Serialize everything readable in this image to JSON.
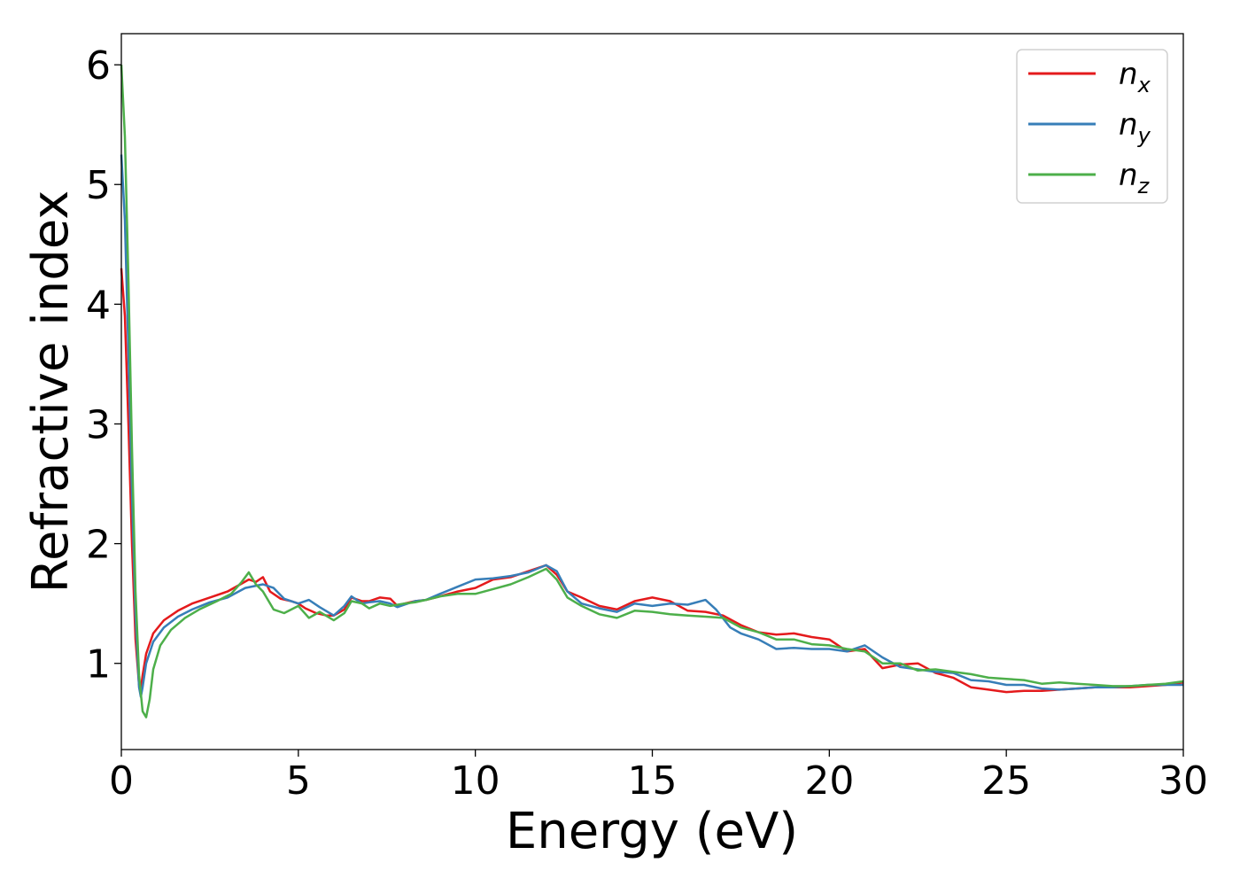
{
  "chart_data": {
    "type": "line",
    "xlabel": "Energy (eV)",
    "ylabel": "Refractive index",
    "xlim": [
      0,
      30
    ],
    "ylim": [
      0.28,
      6.26
    ],
    "x_ticks": [
      0,
      5,
      10,
      15,
      20,
      25,
      30
    ],
    "y_ticks": [
      1,
      2,
      3,
      4,
      5,
      6
    ],
    "grid": false,
    "legend_position": "top-right",
    "series": [
      {
        "name": "n",
        "subscript": "x",
        "color": "#e41a1c",
        "points": [
          [
            0,
            4.3
          ],
          [
            0.1,
            3.9
          ],
          [
            0.2,
            3.0
          ],
          [
            0.3,
            2.0
          ],
          [
            0.4,
            1.2
          ],
          [
            0.5,
            0.82
          ],
          [
            0.55,
            0.78
          ],
          [
            0.6,
            0.9
          ],
          [
            0.7,
            1.08
          ],
          [
            0.9,
            1.25
          ],
          [
            1.2,
            1.36
          ],
          [
            1.6,
            1.44
          ],
          [
            2.0,
            1.5
          ],
          [
            2.5,
            1.55
          ],
          [
            3.0,
            1.6
          ],
          [
            3.3,
            1.65
          ],
          [
            3.6,
            1.7
          ],
          [
            3.8,
            1.68
          ],
          [
            4.0,
            1.72
          ],
          [
            4.2,
            1.6
          ],
          [
            4.5,
            1.54
          ],
          [
            4.8,
            1.52
          ],
          [
            5.0,
            1.5
          ],
          [
            5.2,
            1.46
          ],
          [
            5.5,
            1.42
          ],
          [
            5.8,
            1.4
          ],
          [
            6.0,
            1.4
          ],
          [
            6.3,
            1.45
          ],
          [
            6.5,
            1.55
          ],
          [
            6.8,
            1.52
          ],
          [
            7.0,
            1.52
          ],
          [
            7.3,
            1.55
          ],
          [
            7.6,
            1.54
          ],
          [
            7.8,
            1.48
          ],
          [
            8.0,
            1.5
          ],
          [
            8.3,
            1.52
          ],
          [
            8.6,
            1.53
          ],
          [
            9.0,
            1.56
          ],
          [
            9.5,
            1.6
          ],
          [
            10.0,
            1.63
          ],
          [
            10.5,
            1.7
          ],
          [
            11.0,
            1.72
          ],
          [
            11.5,
            1.77
          ],
          [
            12.0,
            1.82
          ],
          [
            12.3,
            1.74
          ],
          [
            12.6,
            1.6
          ],
          [
            13.0,
            1.55
          ],
          [
            13.5,
            1.48
          ],
          [
            14.0,
            1.45
          ],
          [
            14.5,
            1.52
          ],
          [
            15.0,
            1.55
          ],
          [
            15.5,
            1.52
          ],
          [
            16.0,
            1.44
          ],
          [
            16.5,
            1.43
          ],
          [
            17.0,
            1.4
          ],
          [
            17.5,
            1.32
          ],
          [
            18.0,
            1.26
          ],
          [
            18.5,
            1.24
          ],
          [
            19.0,
            1.25
          ],
          [
            19.5,
            1.22
          ],
          [
            20.0,
            1.2
          ],
          [
            20.5,
            1.1
          ],
          [
            21.0,
            1.12
          ],
          [
            21.5,
            0.96
          ],
          [
            22.0,
            0.99
          ],
          [
            22.5,
            1.0
          ],
          [
            23.0,
            0.92
          ],
          [
            23.5,
            0.88
          ],
          [
            24.0,
            0.8
          ],
          [
            24.5,
            0.78
          ],
          [
            25.0,
            0.76
          ],
          [
            25.5,
            0.77
          ],
          [
            26.0,
            0.77
          ],
          [
            26.5,
            0.78
          ],
          [
            27.0,
            0.79
          ],
          [
            27.5,
            0.8
          ],
          [
            28.0,
            0.8
          ],
          [
            28.5,
            0.8
          ],
          [
            29.0,
            0.81
          ],
          [
            29.5,
            0.82
          ],
          [
            30.0,
            0.84
          ]
        ]
      },
      {
        "name": "n",
        "subscript": "y",
        "color": "#377eb8",
        "points": [
          [
            0,
            5.25
          ],
          [
            0.1,
            4.7
          ],
          [
            0.2,
            3.6
          ],
          [
            0.3,
            2.4
          ],
          [
            0.4,
            1.4
          ],
          [
            0.5,
            0.8
          ],
          [
            0.55,
            0.72
          ],
          [
            0.6,
            0.8
          ],
          [
            0.7,
            1.0
          ],
          [
            0.9,
            1.18
          ],
          [
            1.2,
            1.3
          ],
          [
            1.6,
            1.39
          ],
          [
            2.0,
            1.45
          ],
          [
            2.5,
            1.51
          ],
          [
            3.0,
            1.55
          ],
          [
            3.5,
            1.63
          ],
          [
            4.0,
            1.66
          ],
          [
            4.3,
            1.63
          ],
          [
            4.6,
            1.54
          ],
          [
            5.0,
            1.5
          ],
          [
            5.3,
            1.53
          ],
          [
            5.6,
            1.47
          ],
          [
            6.0,
            1.4
          ],
          [
            6.3,
            1.48
          ],
          [
            6.5,
            1.56
          ],
          [
            6.8,
            1.5
          ],
          [
            7.0,
            1.51
          ],
          [
            7.3,
            1.52
          ],
          [
            7.6,
            1.5
          ],
          [
            7.8,
            1.47
          ],
          [
            8.0,
            1.49
          ],
          [
            8.3,
            1.52
          ],
          [
            8.6,
            1.53
          ],
          [
            9.0,
            1.58
          ],
          [
            9.5,
            1.64
          ],
          [
            10.0,
            1.7
          ],
          [
            10.5,
            1.71
          ],
          [
            11.0,
            1.73
          ],
          [
            11.5,
            1.76
          ],
          [
            12.0,
            1.82
          ],
          [
            12.3,
            1.77
          ],
          [
            12.6,
            1.6
          ],
          [
            13.0,
            1.5
          ],
          [
            13.5,
            1.46
          ],
          [
            14.0,
            1.43
          ],
          [
            14.5,
            1.5
          ],
          [
            15.0,
            1.48
          ],
          [
            15.5,
            1.5
          ],
          [
            16.0,
            1.49
          ],
          [
            16.5,
            1.53
          ],
          [
            16.8,
            1.45
          ],
          [
            17.2,
            1.3
          ],
          [
            17.5,
            1.25
          ],
          [
            18.0,
            1.2
          ],
          [
            18.5,
            1.12
          ],
          [
            19.0,
            1.13
          ],
          [
            19.5,
            1.12
          ],
          [
            20.0,
            1.12
          ],
          [
            20.5,
            1.1
          ],
          [
            21.0,
            1.15
          ],
          [
            21.5,
            1.05
          ],
          [
            22.0,
            0.97
          ],
          [
            22.5,
            0.95
          ],
          [
            23.0,
            0.93
          ],
          [
            23.5,
            0.92
          ],
          [
            24.0,
            0.86
          ],
          [
            24.5,
            0.85
          ],
          [
            25.0,
            0.82
          ],
          [
            25.5,
            0.82
          ],
          [
            26.0,
            0.79
          ],
          [
            26.5,
            0.78
          ],
          [
            27.0,
            0.79
          ],
          [
            27.5,
            0.8
          ],
          [
            28.0,
            0.8
          ],
          [
            28.5,
            0.81
          ],
          [
            29.0,
            0.82
          ],
          [
            29.5,
            0.82
          ],
          [
            30.0,
            0.82
          ]
        ]
      },
      {
        "name": "n",
        "subscript": "z",
        "color": "#4daf4a",
        "points": [
          [
            0,
            6.0
          ],
          [
            0.1,
            5.4
          ],
          [
            0.2,
            4.2
          ],
          [
            0.3,
            2.8
          ],
          [
            0.4,
            1.6
          ],
          [
            0.5,
            0.9
          ],
          [
            0.6,
            0.6
          ],
          [
            0.7,
            0.55
          ],
          [
            0.8,
            0.7
          ],
          [
            0.9,
            0.95
          ],
          [
            1.1,
            1.15
          ],
          [
            1.4,
            1.28
          ],
          [
            1.8,
            1.38
          ],
          [
            2.2,
            1.45
          ],
          [
            2.7,
            1.52
          ],
          [
            3.1,
            1.58
          ],
          [
            3.4,
            1.68
          ],
          [
            3.6,
            1.76
          ],
          [
            3.8,
            1.66
          ],
          [
            4.0,
            1.6
          ],
          [
            4.3,
            1.45
          ],
          [
            4.6,
            1.42
          ],
          [
            5.0,
            1.48
          ],
          [
            5.3,
            1.38
          ],
          [
            5.6,
            1.43
          ],
          [
            6.0,
            1.36
          ],
          [
            6.3,
            1.42
          ],
          [
            6.5,
            1.52
          ],
          [
            6.8,
            1.5
          ],
          [
            7.0,
            1.46
          ],
          [
            7.3,
            1.5
          ],
          [
            7.6,
            1.48
          ],
          [
            8.0,
            1.5
          ],
          [
            8.3,
            1.51
          ],
          [
            8.6,
            1.53
          ],
          [
            9.0,
            1.56
          ],
          [
            9.5,
            1.58
          ],
          [
            10.0,
            1.58
          ],
          [
            10.5,
            1.62
          ],
          [
            11.0,
            1.66
          ],
          [
            11.5,
            1.72
          ],
          [
            12.0,
            1.79
          ],
          [
            12.3,
            1.7
          ],
          [
            12.6,
            1.55
          ],
          [
            13.0,
            1.48
          ],
          [
            13.5,
            1.41
          ],
          [
            14.0,
            1.38
          ],
          [
            14.5,
            1.44
          ],
          [
            15.0,
            1.43
          ],
          [
            15.5,
            1.41
          ],
          [
            16.0,
            1.4
          ],
          [
            16.5,
            1.39
          ],
          [
            17.0,
            1.38
          ],
          [
            17.5,
            1.3
          ],
          [
            18.0,
            1.26
          ],
          [
            18.5,
            1.2
          ],
          [
            19.0,
            1.2
          ],
          [
            19.5,
            1.16
          ],
          [
            20.0,
            1.15
          ],
          [
            20.5,
            1.12
          ],
          [
            21.0,
            1.1
          ],
          [
            21.5,
            1.0
          ],
          [
            22.0,
            1.0
          ],
          [
            22.5,
            0.94
          ],
          [
            23.0,
            0.95
          ],
          [
            23.5,
            0.93
          ],
          [
            24.0,
            0.91
          ],
          [
            24.5,
            0.88
          ],
          [
            25.0,
            0.87
          ],
          [
            25.5,
            0.86
          ],
          [
            26.0,
            0.83
          ],
          [
            26.5,
            0.84
          ],
          [
            27.0,
            0.83
          ],
          [
            27.5,
            0.82
          ],
          [
            28.0,
            0.81
          ],
          [
            28.5,
            0.81
          ],
          [
            29.0,
            0.82
          ],
          [
            29.5,
            0.83
          ],
          [
            30.0,
            0.85
          ]
        ]
      }
    ]
  }
}
